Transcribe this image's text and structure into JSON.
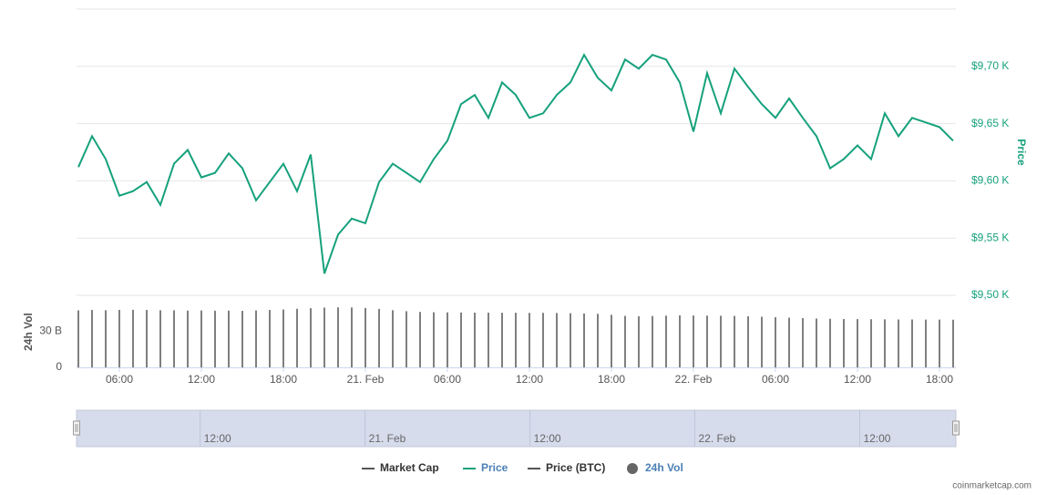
{
  "chart_data": {
    "type": "line",
    "x": [
      3,
      4,
      5,
      6,
      7,
      8,
      9,
      10,
      11,
      12,
      13,
      14,
      15,
      16,
      17,
      18,
      19,
      20,
      21,
      22,
      23,
      24,
      25,
      26,
      27,
      28,
      29,
      30,
      31,
      32,
      33,
      34,
      35,
      36,
      37,
      38,
      39,
      40,
      41,
      42,
      43,
      44,
      45,
      46,
      47,
      48,
      49,
      50,
      51,
      52,
      53,
      54,
      55,
      56,
      57,
      58,
      59,
      60,
      61,
      62,
      63,
      64,
      65,
      66,
      67
    ],
    "xlim": [
      3,
      67
    ],
    "xticks": [
      {
        "value": 6,
        "label": "06:00"
      },
      {
        "value": 12,
        "label": "12:00"
      },
      {
        "value": 18,
        "label": "18:00"
      },
      {
        "value": 24,
        "label": "21. Feb"
      },
      {
        "value": 30,
        "label": "06:00"
      },
      {
        "value": 36,
        "label": "12:00"
      },
      {
        "value": 42,
        "label": "18:00"
      },
      {
        "value": 48,
        "label": "22. Feb"
      },
      {
        "value": 54,
        "label": "06:00"
      },
      {
        "value": 60,
        "label": "12:00"
      },
      {
        "value": 66,
        "label": "18:00"
      }
    ],
    "ylim": [
      9500,
      9750
    ],
    "yticks": [
      {
        "value": 9500,
        "label": "$9,50 K"
      },
      {
        "value": 9550,
        "label": "$9,55 K"
      },
      {
        "value": 9600,
        "label": "$9,60 K"
      },
      {
        "value": 9650,
        "label": "$9,65 K"
      },
      {
        "value": 9700,
        "label": "$9,70 K"
      }
    ],
    "y_axis_label": "Price",
    "y2lim": [
      0,
      60
    ],
    "y2ticks": [
      0,
      {
        "value": 30,
        "label": "30 B"
      }
    ],
    "y2_axis_label": "24h Vol",
    "grid": true,
    "series": [
      {
        "name": "Market Cap",
        "color": "#555555",
        "visible": false
      },
      {
        "name": "Price",
        "color": "#16a17c",
        "visible": true,
        "values": [
          9612,
          9639,
          9619,
          9587,
          9591,
          9599,
          9579,
          9615,
          9627,
          9603,
          9607,
          9624,
          9611,
          9583,
          9599,
          9615,
          9591,
          9623,
          9519,
          9553,
          9567,
          9563,
          9599,
          9615,
          9607,
          9599,
          9619,
          9635,
          9667,
          9675,
          9655,
          9686,
          9675,
          9655,
          9659,
          9675,
          9686,
          9710,
          9690,
          9679,
          9706,
          9698,
          9710,
          9706,
          9686,
          9643,
          9694,
          9659,
          9698,
          9682,
          9667,
          9655,
          9672,
          9655,
          9639,
          9611,
          9619,
          9631,
          9619,
          9659,
          9639,
          9655,
          9651,
          9647,
          9635
        ]
      },
      {
        "name": "Price (BTC)",
        "color": "#555555",
        "visible": false
      },
      {
        "name": "24h Vol",
        "color": "#555555",
        "visible": true,
        "axis": "y2",
        "marker": "circle",
        "values": [
          47.5,
          47.8,
          47.6,
          47.9,
          48,
          47.8,
          47.6,
          47.5,
          47.3,
          47.4,
          47.2,
          47.3,
          47.1,
          47.4,
          47.8,
          48.2,
          48.8,
          49.3,
          49.8,
          50,
          49.9,
          49.5,
          48.7,
          47.6,
          46.8,
          46.2,
          45.9,
          45.8,
          45.7,
          45.6,
          45.6,
          45.5,
          45.5,
          45.4,
          45.4,
          45.3,
          45.1,
          44.9,
          44.6,
          43.8,
          42.9,
          42.6,
          42.8,
          43.1,
          43.3,
          43.2,
          43.1,
          43,
          42.9,
          42.6,
          42.2,
          41.8,
          41.4,
          41,
          40.7,
          40.5,
          40.3,
          40.2,
          40.1,
          40,
          39.9,
          39.9,
          39.8,
          39.8,
          39.7
        ]
      }
    ],
    "navigator": {
      "xticks": [
        {
          "value": 12,
          "label": "12:00"
        },
        {
          "value": 24,
          "label": "21. Feb"
        },
        {
          "value": 36,
          "label": "12:00"
        },
        {
          "value": 48,
          "label": "22. Feb"
        },
        {
          "value": 60,
          "label": "12:00"
        }
      ]
    },
    "credit": "coinmarketcap.com"
  }
}
